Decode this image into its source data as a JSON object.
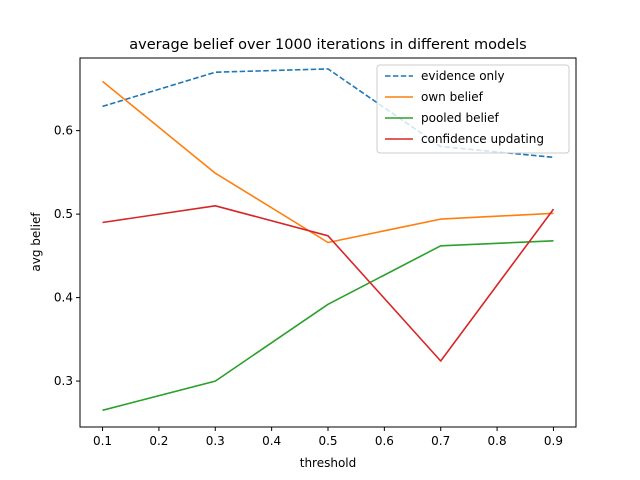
{
  "chart_data": {
    "type": "line",
    "title": "average belief over 1000 iterations in different models",
    "xlabel": "threshold",
    "ylabel": "avg belief",
    "x": [
      0.1,
      0.3,
      0.5,
      0.7,
      0.9
    ],
    "xlim": [
      0.06,
      0.94
    ],
    "ylim": [
      0.245,
      0.687
    ],
    "xticks": [
      "0.1",
      "0.2",
      "0.3",
      "0.4",
      "0.5",
      "0.6",
      "0.7",
      "0.8",
      "0.9"
    ],
    "yticks": [
      "0.3",
      "0.4",
      "0.5",
      "0.6"
    ],
    "grid": false,
    "legend_position": "top-right",
    "series": [
      {
        "name": "evidence only",
        "values": [
          0.629,
          0.67,
          0.674,
          0.581,
          0.568
        ],
        "color": "#1f77b4",
        "dash": "dashed"
      },
      {
        "name": "own belief",
        "values": [
          0.659,
          0.549,
          0.466,
          0.494,
          0.501
        ],
        "color": "#ff7f0e",
        "dash": "solid"
      },
      {
        "name": "pooled belief",
        "values": [
          0.265,
          0.3,
          0.392,
          0.462,
          0.468
        ],
        "color": "#2ca02c",
        "dash": "solid"
      },
      {
        "name": "confidence updating",
        "values": [
          0.49,
          0.51,
          0.474,
          0.324,
          0.506
        ],
        "color": "#d62728",
        "dash": "solid"
      }
    ]
  }
}
